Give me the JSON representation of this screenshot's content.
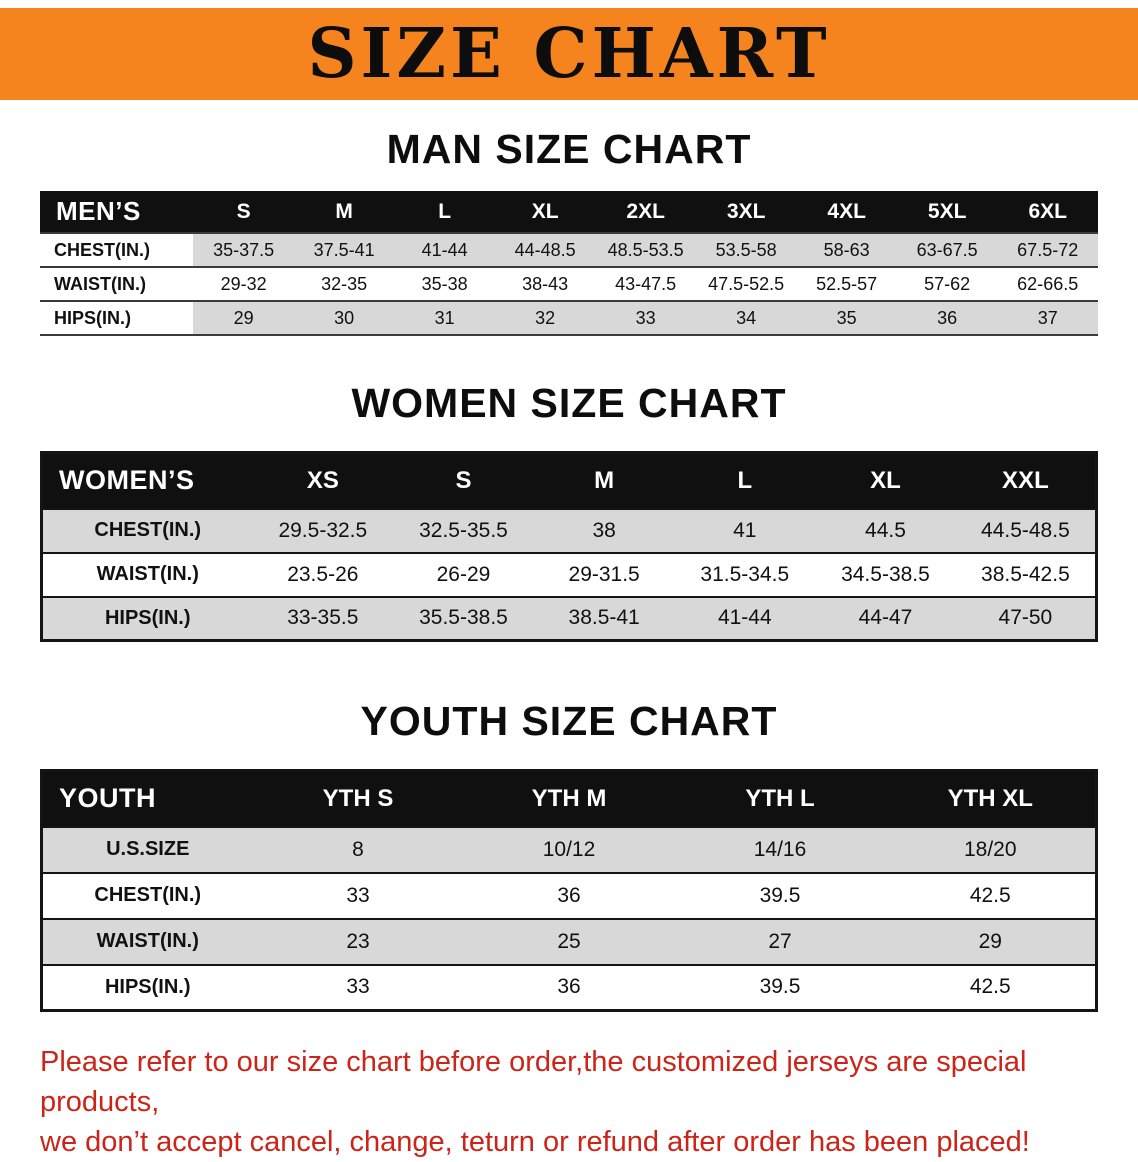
{
  "banner": {
    "title": "SIZE CHART"
  },
  "colors": {
    "banner_bg": "#F5841F",
    "header_bg": "#101010",
    "row_gray": "#D8D8D8",
    "disclaimer_red": "#CC2418"
  },
  "sections": [
    {
      "heading": "MAN SIZE CHART",
      "table": {
        "header": [
          "MEN’S",
          "S",
          "M",
          "L",
          "XL",
          "2XL",
          "3XL",
          "4XL",
          "5XL",
          "6XL"
        ],
        "rows": [
          [
            "CHEST(IN.)",
            "35-37.5",
            "37.5-41",
            "41-44",
            "44-48.5",
            "48.5-53.5",
            "53.5-58",
            "58-63",
            "63-67.5",
            "67.5-72"
          ],
          [
            "WAIST(IN.)",
            "29-32",
            "32-35",
            "35-38",
            "38-43",
            "43-47.5",
            "47.5-52.5",
            "52.5-57",
            "57-62",
            "62-66.5"
          ],
          [
            "HIPS(IN.)",
            "29",
            "30",
            "31",
            "32",
            "33",
            "34",
            "35",
            "36",
            "37"
          ]
        ]
      }
    },
    {
      "heading": "WOMEN SIZE CHART",
      "table": {
        "header": [
          "WOMEN’S",
          "XS",
          "S",
          "M",
          "L",
          "XL",
          "XXL"
        ],
        "rows": [
          [
            "CHEST(IN.)",
            "29.5-32.5",
            "32.5-35.5",
            "38",
            "41",
            "44.5",
            "44.5-48.5"
          ],
          [
            "WAIST(IN.)",
            "23.5-26",
            "26-29",
            "29-31.5",
            "31.5-34.5",
            "34.5-38.5",
            "38.5-42.5"
          ],
          [
            "HIPS(IN.)",
            "33-35.5",
            "35.5-38.5",
            "38.5-41",
            "41-44",
            "44-47",
            "47-50"
          ]
        ]
      }
    },
    {
      "heading": "YOUTH SIZE CHART",
      "table": {
        "header": [
          "YOUTH",
          "YTH S",
          "YTH M",
          "YTH L",
          "YTH XL"
        ],
        "rows": [
          [
            "U.S.SIZE",
            "8",
            "10/12",
            "14/16",
            "18/20"
          ],
          [
            "CHEST(IN.)",
            "33",
            "36",
            "39.5",
            "42.5"
          ],
          [
            "WAIST(IN.)",
            "23",
            "25",
            "27",
            "29"
          ],
          [
            "HIPS(IN.)",
            "33",
            "36",
            "39.5",
            "42.5"
          ]
        ]
      }
    }
  ],
  "disclaimer": [
    "Please refer to our size chart before order,the customized jerseys are special products,",
    "we don’t accept cancel, change, teturn or refund after order has been placed!"
  ]
}
